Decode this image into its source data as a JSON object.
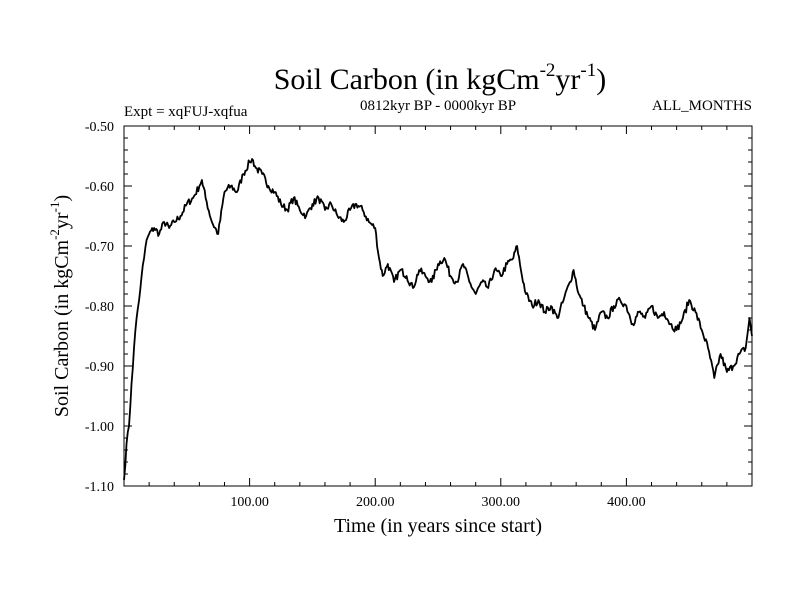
{
  "chart_data": {
    "type": "line",
    "title": {
      "main": "Soil Carbon (in kgCm",
      "sup1": "-2",
      "mid": "yr",
      "sup2": "-1",
      "end": ")"
    },
    "subtitle_left": "Expt = xqFUJ-xqfua",
    "subtitle_center": "0812kyr BP - 0000kyr BP",
    "subtitle_right": "ALL_MONTHS",
    "xlabel": "Time (in years since start)",
    "ylabel": {
      "main": "Soil Carbon (in kgCm",
      "sup1": "-2",
      "mid": "yr",
      "sup2": "-1",
      "end": ")"
    },
    "xlim": [
      0,
      500
    ],
    "ylim": [
      -1.1,
      -0.5
    ],
    "x_ticks": [
      100,
      200,
      300,
      400
    ],
    "x_tick_labels": [
      "100.00",
      "200.00",
      "300.00",
      "400.00"
    ],
    "y_ticks": [
      -1.1,
      -1.0,
      -0.9,
      -0.8,
      -0.7,
      -0.6,
      -0.5
    ],
    "y_tick_labels": [
      "-1.10",
      "-1.00",
      "-0.90",
      "-0.80",
      "-0.70",
      "-0.60",
      "-0.50"
    ],
    "series": [
      {
        "name": "Soil Carbon",
        "x": [
          0,
          2,
          4,
          6,
          8,
          10,
          12,
          14,
          16,
          18,
          20,
          24,
          28,
          32,
          36,
          40,
          45,
          50,
          55,
          60,
          62,
          65,
          70,
          75,
          80,
          85,
          90,
          95,
          100,
          102,
          105,
          110,
          115,
          120,
          125,
          130,
          135,
          140,
          145,
          150,
          155,
          160,
          165,
          170,
          175,
          180,
          185,
          190,
          195,
          200,
          203,
          206,
          210,
          215,
          220,
          225,
          230,
          235,
          240,
          245,
          250,
          255,
          260,
          265,
          270,
          275,
          280,
          285,
          290,
          295,
          300,
          305,
          310,
          313,
          316,
          320,
          325,
          330,
          335,
          340,
          345,
          350,
          355,
          358,
          362,
          366,
          370,
          375,
          380,
          385,
          390,
          395,
          400,
          405,
          410,
          415,
          420,
          425,
          430,
          435,
          440,
          445,
          450,
          455,
          460,
          465,
          470,
          475,
          480,
          485,
          490,
          495,
          498,
          500
        ],
        "y": [
          -1.09,
          -1.03,
          -1.0,
          -0.93,
          -0.87,
          -0.82,
          -0.79,
          -0.75,
          -0.72,
          -0.69,
          -0.68,
          -0.67,
          -0.68,
          -0.66,
          -0.67,
          -0.66,
          -0.65,
          -0.63,
          -0.62,
          -0.6,
          -0.59,
          -0.62,
          -0.66,
          -0.68,
          -0.61,
          -0.6,
          -0.61,
          -0.58,
          -0.56,
          -0.555,
          -0.57,
          -0.58,
          -0.6,
          -0.61,
          -0.63,
          -0.64,
          -0.62,
          -0.64,
          -0.65,
          -0.63,
          -0.62,
          -0.64,
          -0.63,
          -0.65,
          -0.66,
          -0.64,
          -0.63,
          -0.64,
          -0.66,
          -0.67,
          -0.72,
          -0.75,
          -0.73,
          -0.76,
          -0.74,
          -0.75,
          -0.77,
          -0.74,
          -0.75,
          -0.76,
          -0.73,
          -0.72,
          -0.75,
          -0.76,
          -0.73,
          -0.76,
          -0.78,
          -0.76,
          -0.77,
          -0.74,
          -0.75,
          -0.73,
          -0.72,
          -0.7,
          -0.74,
          -0.78,
          -0.8,
          -0.79,
          -0.81,
          -0.8,
          -0.82,
          -0.79,
          -0.76,
          -0.74,
          -0.78,
          -0.8,
          -0.82,
          -0.84,
          -0.81,
          -0.82,
          -0.8,
          -0.79,
          -0.8,
          -0.83,
          -0.81,
          -0.82,
          -0.8,
          -0.82,
          -0.81,
          -0.83,
          -0.84,
          -0.82,
          -0.79,
          -0.81,
          -0.84,
          -0.87,
          -0.92,
          -0.88,
          -0.91,
          -0.9,
          -0.88,
          -0.87,
          -0.82,
          -0.85
        ]
      }
    ]
  }
}
